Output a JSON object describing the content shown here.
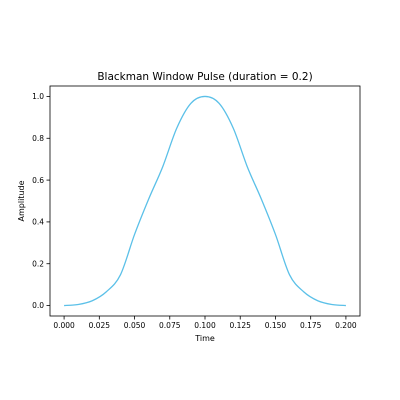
{
  "chart_data": {
    "type": "line",
    "title": "Blackman Window Pulse (duration = 0.2)",
    "xlabel": "Time",
    "ylabel": "Amplitude",
    "xlim": [
      -0.01,
      0.21
    ],
    "ylim": [
      -0.05,
      1.05
    ],
    "xticks": [
      "0.000",
      "0.025",
      "0.050",
      "0.075",
      "0.100",
      "0.125",
      "0.150",
      "0.175",
      "0.200"
    ],
    "yticks": [
      "0.0",
      "0.2",
      "0.4",
      "0.6",
      "0.8",
      "1.0"
    ],
    "grid": false,
    "line_color": "#5bc0e8",
    "series": [
      {
        "x": [
          0.0,
          0.01,
          0.02,
          0.03,
          0.04,
          0.05,
          0.06,
          0.07,
          0.08,
          0.09,
          0.1,
          0.11,
          0.12,
          0.13,
          0.14,
          0.15,
          0.16,
          0.17,
          0.18,
          0.19,
          0.2
        ],
        "values": [
          0.0,
          0.005,
          0.023,
          0.066,
          0.147,
          0.34,
          0.509,
          0.664,
          0.849,
          0.967,
          1.0,
          0.967,
          0.849,
          0.664,
          0.509,
          0.34,
          0.147,
          0.066,
          0.023,
          0.005,
          0.0
        ]
      }
    ]
  }
}
